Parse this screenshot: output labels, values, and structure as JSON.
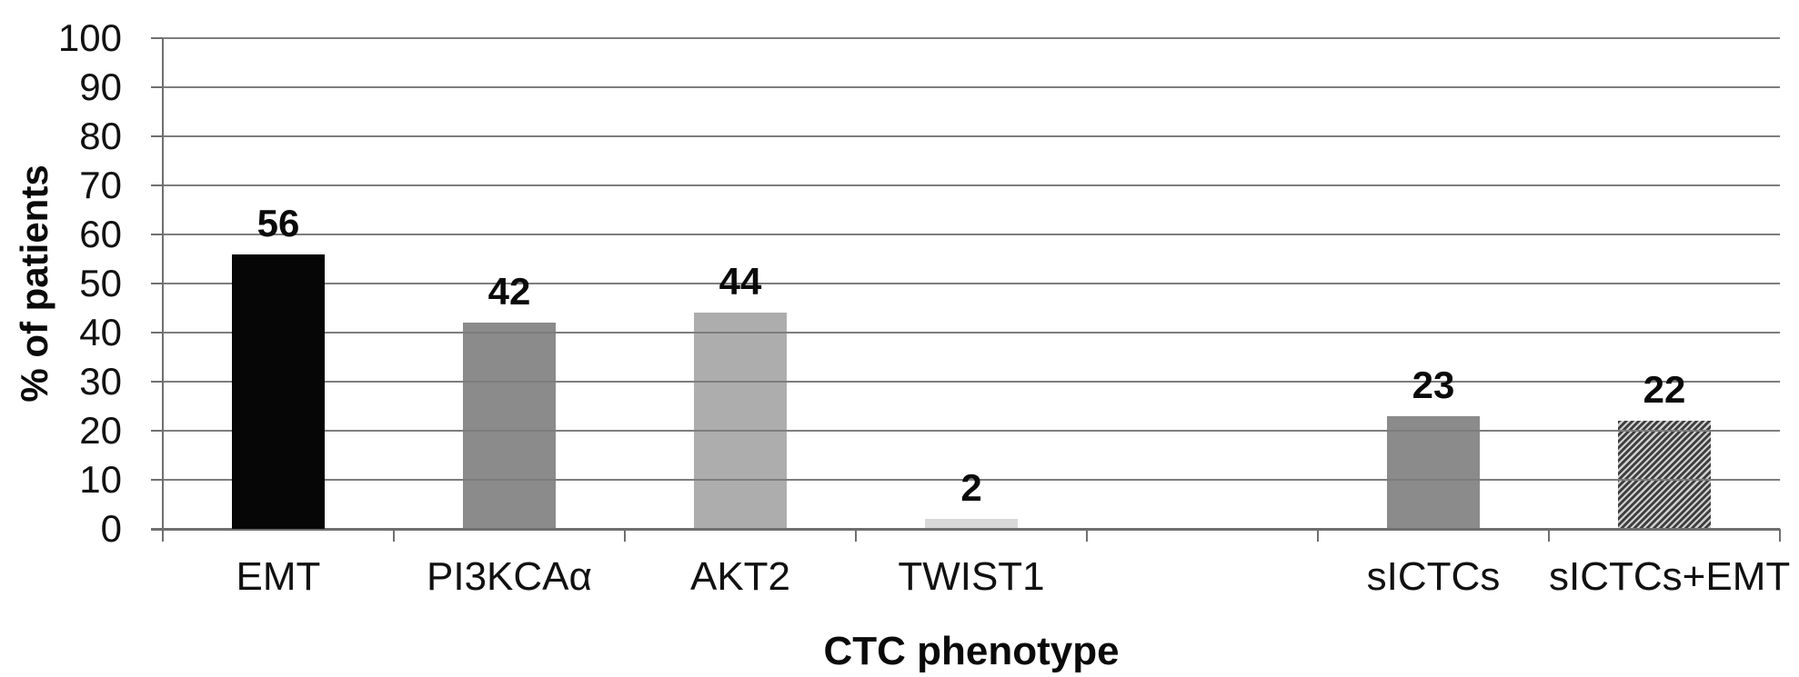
{
  "figure": {
    "background": "#ffffff"
  },
  "chart_data": {
    "type": "bar",
    "title": "",
    "xlabel": "CTC phenotype",
    "ylabel": "% of patients",
    "ylim": [
      0,
      100
    ],
    "yticks": [
      0,
      10,
      20,
      30,
      40,
      50,
      60,
      70,
      80,
      90,
      100
    ],
    "grid": "horizontal-gridlines-on",
    "legend": "none",
    "categories": [
      "EMT",
      "PI3KCAα",
      "AKT2",
      "TWIST1",
      "",
      "sICTCs",
      "sICTCs+EMT"
    ],
    "values": [
      56,
      42,
      44,
      2,
      null,
      23,
      22
    ],
    "bar_value_labels": [
      "56",
      "42",
      "44",
      "2",
      "",
      "23",
      "22"
    ],
    "bar_styles": [
      "solid-black",
      "solid-dark-gray",
      "solid-light-gray",
      "solid-very-light-gray",
      "empty",
      "solid-dark-gray",
      "diagonal-hatch"
    ],
    "colors": {
      "bar_black": "#060606",
      "bar_dark_gray": "#8b8b8b",
      "bar_light_gray": "#adadad",
      "bar_very_light_gray": "#d9d9d9",
      "hatch_stripe": "#3e3e3e",
      "hatch_background": "#cfcfcf",
      "gridline": "#7d7d7d",
      "axis": "#6f6f6f",
      "label_text": "#111111"
    }
  }
}
